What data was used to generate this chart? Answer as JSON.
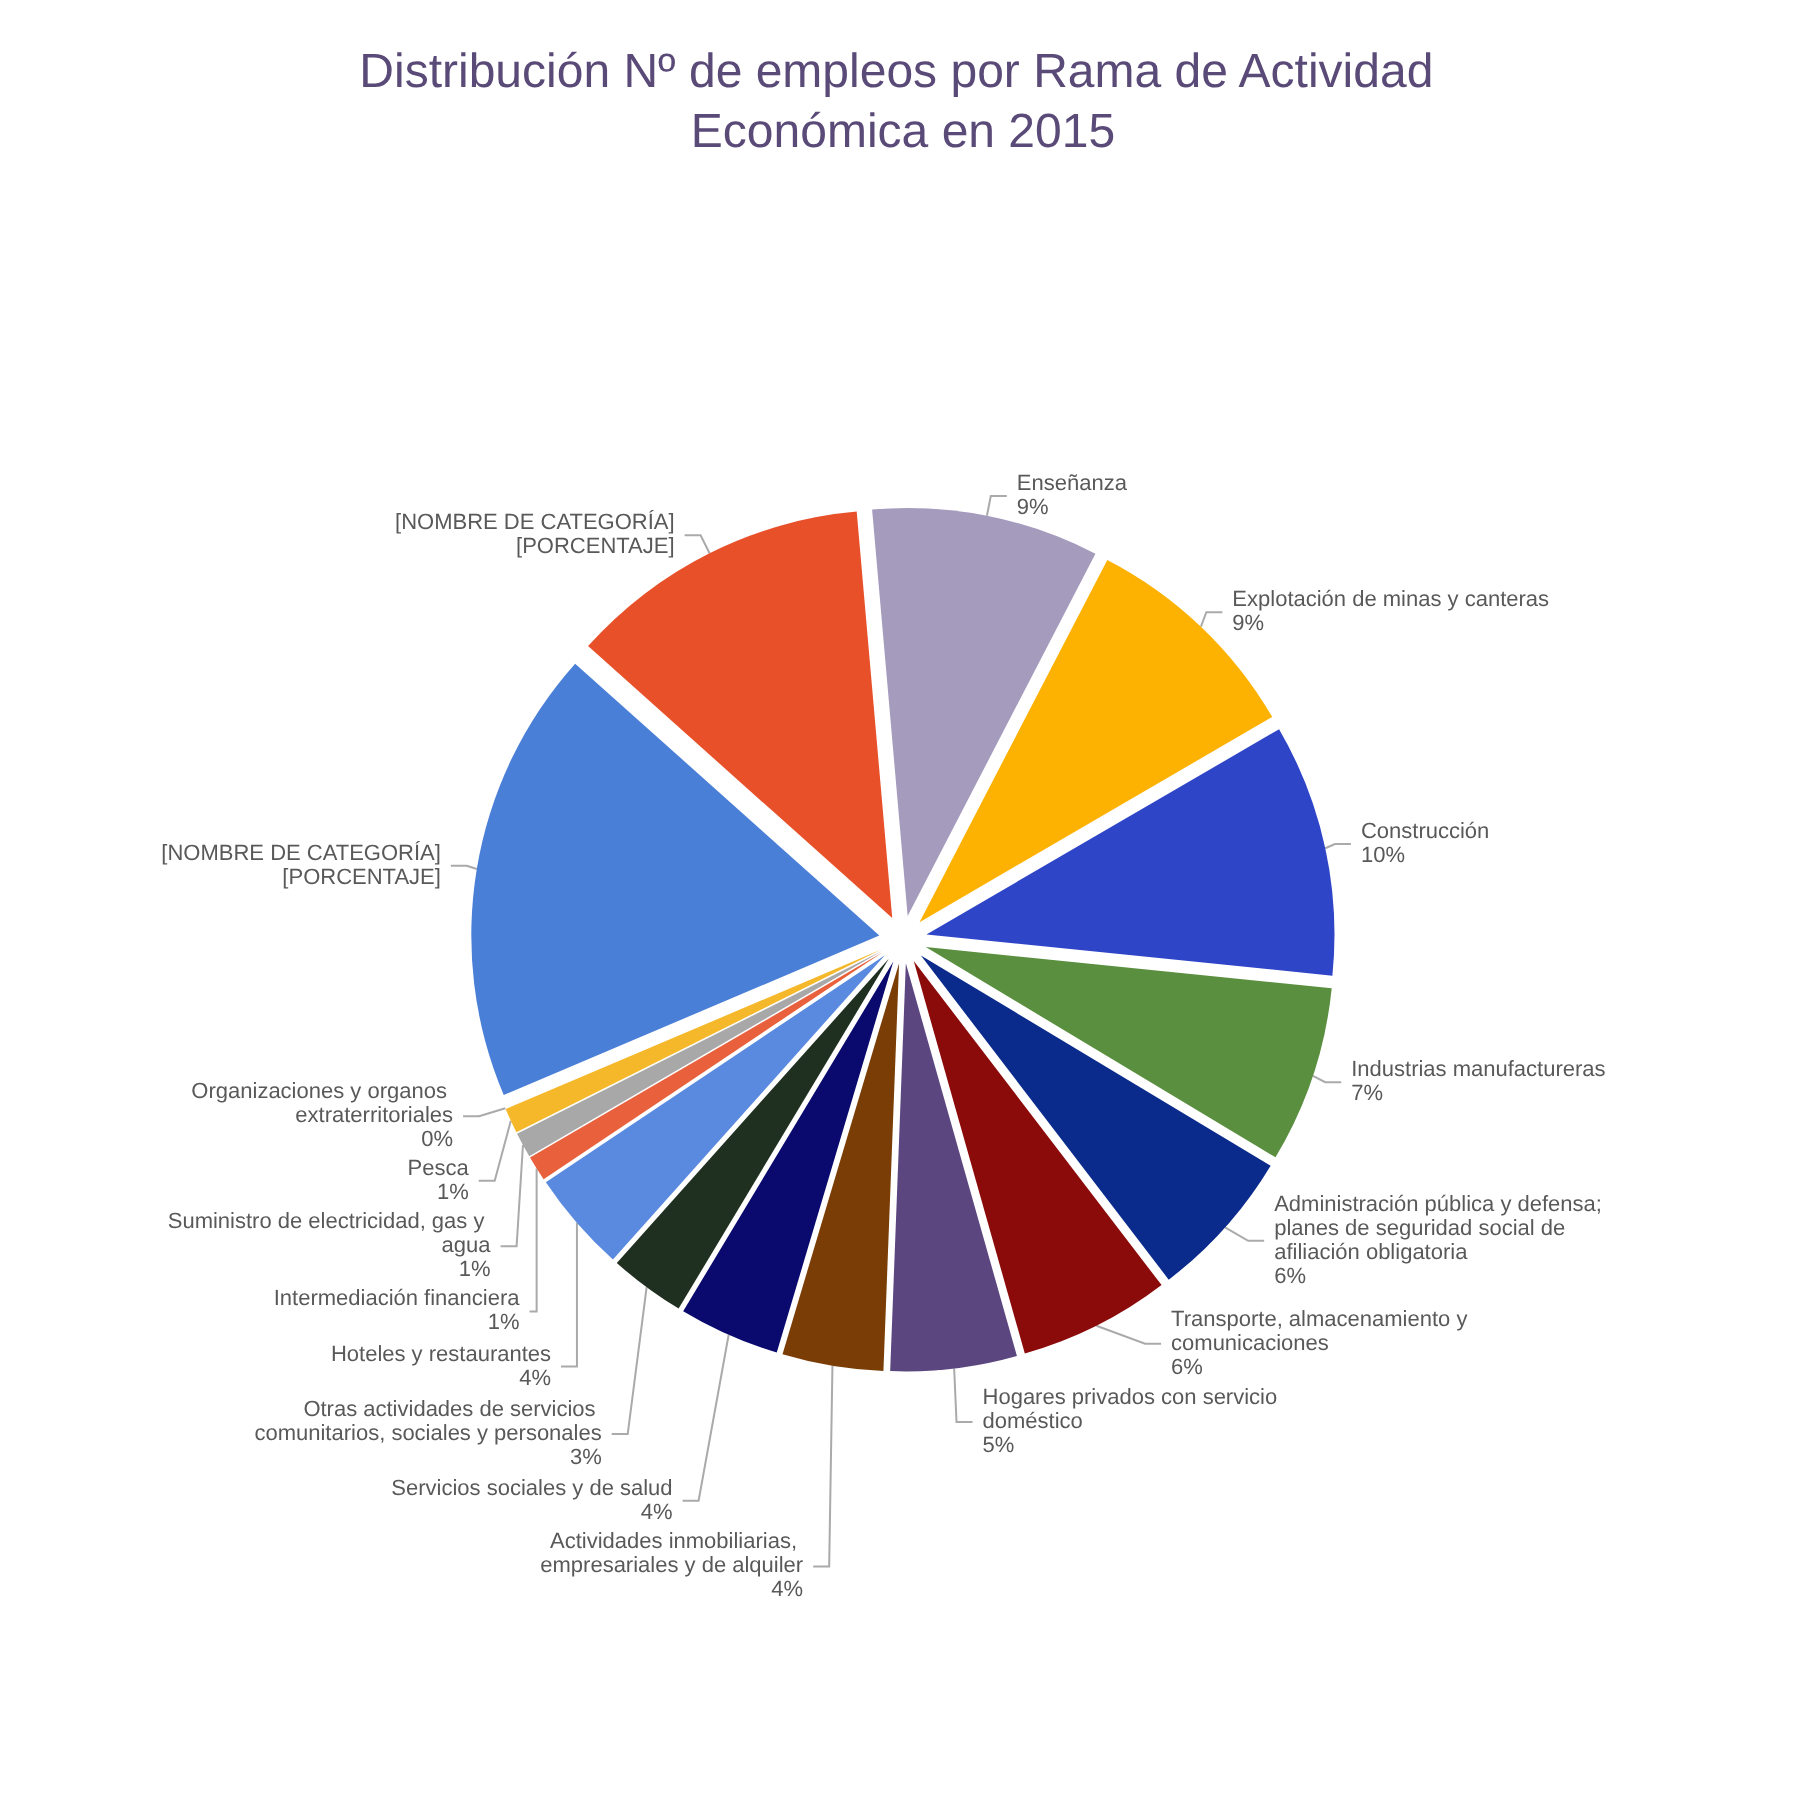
{
  "chart_data": {
    "type": "pie",
    "title": "Distribución Nº de empleos por Rama de Actividad Económica en 2015",
    "categories": [
      "Enseñanza",
      "Explotación de minas y canteras",
      "Construcción",
      "Industrias manufactureras",
      "Administración pública y defensa; planes de seguridad social de afiliación obligatoria",
      "Transporte, almacenamiento y comunicaciones",
      "Hogares privados con servicio doméstico",
      "Actividades inmobiliarias, empresariales y de alquiler",
      "Servicios sociales y de salud",
      "Otras actividades de servicios comunitarios, sociales y personales",
      "Hoteles y restaurantes",
      "Intermediación financiera",
      "Suministro de electricidad, gas y agua",
      "Pesca",
      "Organizaciones y organos extraterritoriales",
      "[NOMBRE DE CATEGORÍA]",
      "[NOMBRE DE CATEGORÍA]"
    ],
    "values": [
      9,
      9,
      10,
      7,
      6,
      6,
      5,
      4,
      4,
      3,
      4,
      1,
      1,
      1,
      0,
      18,
      12
    ],
    "value_labels": [
      "9%",
      "9%",
      "10%",
      "7%",
      "6%",
      "6%",
      "5%",
      "4%",
      "4%",
      "3%",
      "4%",
      "1%",
      "1%",
      "1%",
      "0%",
      "[PORCENTAJE]",
      "[PORCENTAJE]"
    ],
    "colors": [
      "#a59bbd",
      "#fdb100",
      "#2f45c8",
      "#5a8f3f",
      "#0a2a8c",
      "#8b0a0a",
      "#5c4680",
      "#7a3d05",
      "#0a0a6e",
      "#1f3020",
      "#5a8ae0",
      "#e8603c",
      "#a8a8a8",
      "#f5b82a",
      "#4a6fb0",
      "#4a7fd8",
      "#e8502a"
    ]
  }
}
